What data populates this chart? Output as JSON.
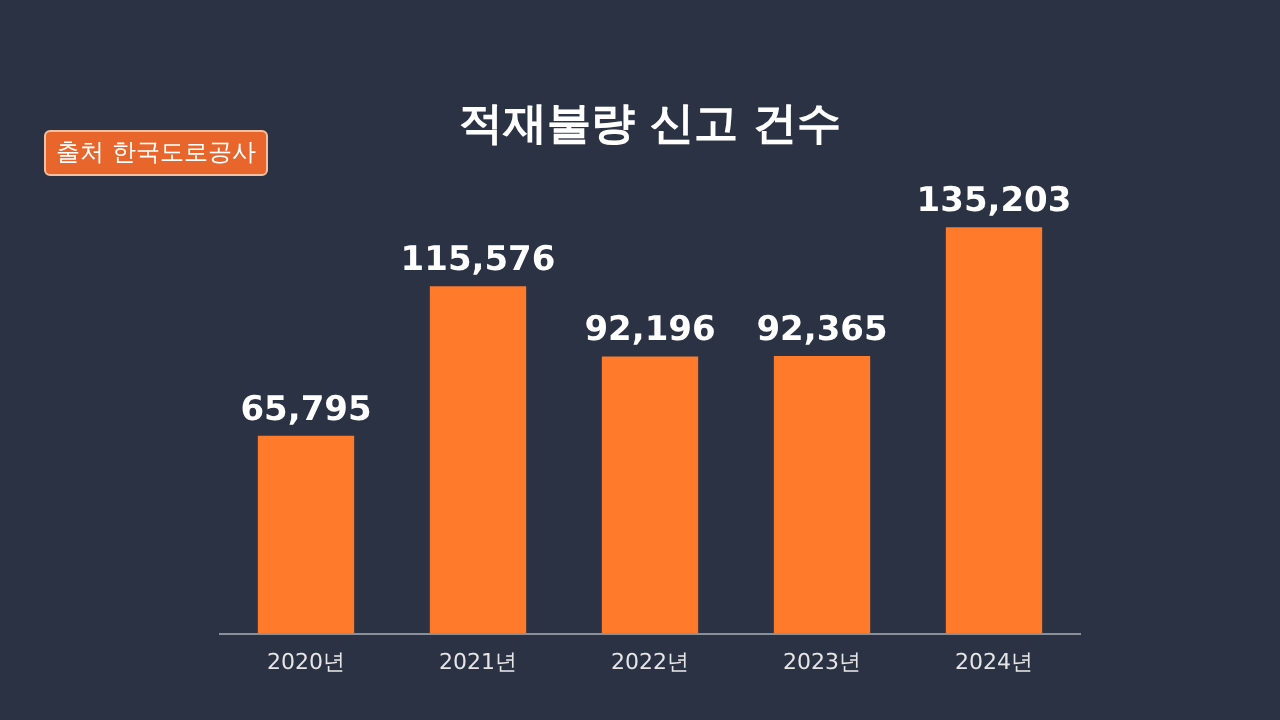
{
  "chart_data": {
    "type": "bar",
    "title": "적재불량 신고 건수",
    "annotations": [
      "출처 한국도로공사"
    ],
    "categories": [
      "2020년",
      "2021년",
      "2022년",
      "2023년",
      "2024년"
    ],
    "values": [
      65795,
      115576,
      92196,
      92365,
      135203
    ],
    "value_labels": [
      "65,795",
      "115,576",
      "92,196",
      "92,365",
      "135,203"
    ],
    "color": "#ff7a2a",
    "grid": false,
    "legend": false
  }
}
